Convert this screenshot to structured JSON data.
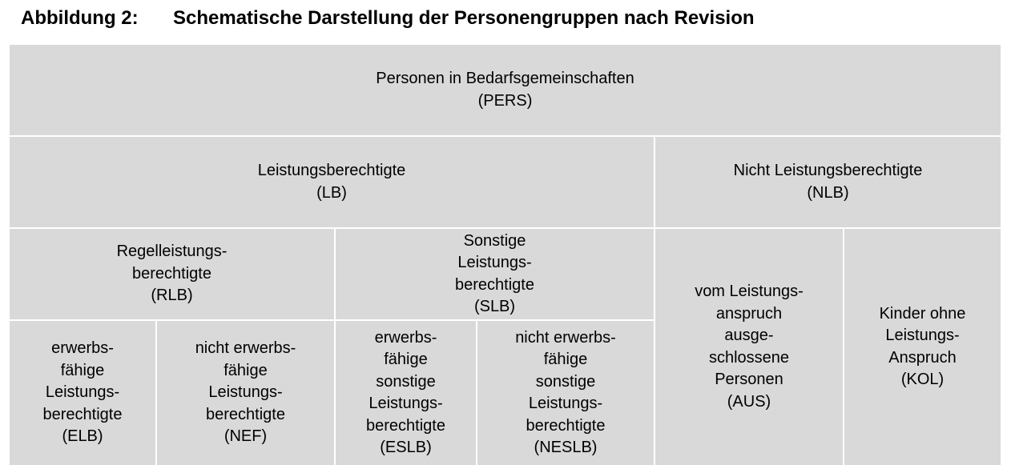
{
  "title": {
    "number": "Abbildung 2:",
    "text": "Schematische Darstellung der Personengruppen nach Revision"
  },
  "colors": {
    "cell_fill": "#d9d9d9",
    "divider": "#ffffff",
    "text": "#000000"
  },
  "nodes": {
    "pers": "Personen in Bedarfsgemeinschaften\n(PERS)",
    "lb": "Leistungsberechtigte\n(LB)",
    "nlb": "Nicht Leistungsberechtigte\n(NLB)",
    "rlb": "Regelleistungs-\nberechtigte\n(RLB)",
    "slb": "Sonstige\nLeistungs-\nberechtigte\n(SLB)",
    "aus": "vom Leistungs-\nanspruch\nausge-\nschlossene\nPersonen\n(AUS)",
    "kol": "Kinder ohne\nLeistungs-\nAnspruch\n(KOL)",
    "elb": "erwerbs-\nfähige\nLeistungs-\nberechtigte\n(ELB)",
    "nef": "nicht erwerbs-\nfähige\nLeistungs-\nberechtigte\n(NEF)",
    "eslb": "erwerbs-\nfähige\nsonstige\nLeistungs-\nberechtigte\n(ESLB)",
    "neslb": "nicht erwerbs-\nfähige\nsonstige\nLeistungs-\nberechtigte\n(NESLB)"
  }
}
